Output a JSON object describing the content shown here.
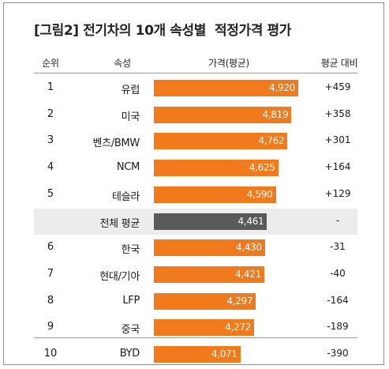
{
  "chart_data": {
    "type": "bar",
    "title": "[그림2] 전기차의 10개 속성별  적정가격 평가",
    "headers": [
      "순위",
      "속성",
      "가격(평균)",
      "평균 대비"
    ],
    "rows": [
      {
        "rank": "1",
        "category": "유럽",
        "value": 4920,
        "label": "4,920",
        "diff": "+459"
      },
      {
        "rank": "2",
        "category": "미국",
        "value": 4819,
        "label": "4,819",
        "diff": "+358"
      },
      {
        "rank": "3",
        "category": "벤츠/BMW",
        "value": 4762,
        "label": "4,762",
        "diff": "+301"
      },
      {
        "rank": "4",
        "category": "NCM",
        "value": 4625,
        "label": "4,625",
        "diff": "+164"
      },
      {
        "rank": "5",
        "category": "테슬라",
        "value": 4590,
        "label": "4,590",
        "diff": "+129"
      },
      {
        "rank": "",
        "category": "전체 평균",
        "value": 4461,
        "label": "4,461",
        "diff": "-",
        "average": true
      },
      {
        "rank": "6",
        "category": "한국",
        "value": 4430,
        "label": "4,430",
        "diff": "-31"
      },
      {
        "rank": "7",
        "category": "현대/기아",
        "value": 4421,
        "label": "4,421",
        "diff": "-40"
      },
      {
        "rank": "8",
        "category": "LFP",
        "value": 4297,
        "label": "4,297",
        "diff": "-164"
      },
      {
        "rank": "9",
        "category": "중국",
        "value": 4272,
        "label": "4,272",
        "diff": "-189"
      },
      {
        "rank": "10",
        "category": "BYD",
        "value": 4071,
        "label": "4,071",
        "diff": "-390"
      }
    ],
    "colors": {
      "bar": "#f07a1c",
      "average_bar": "#595959",
      "average_row": "#ececec"
    }
  }
}
